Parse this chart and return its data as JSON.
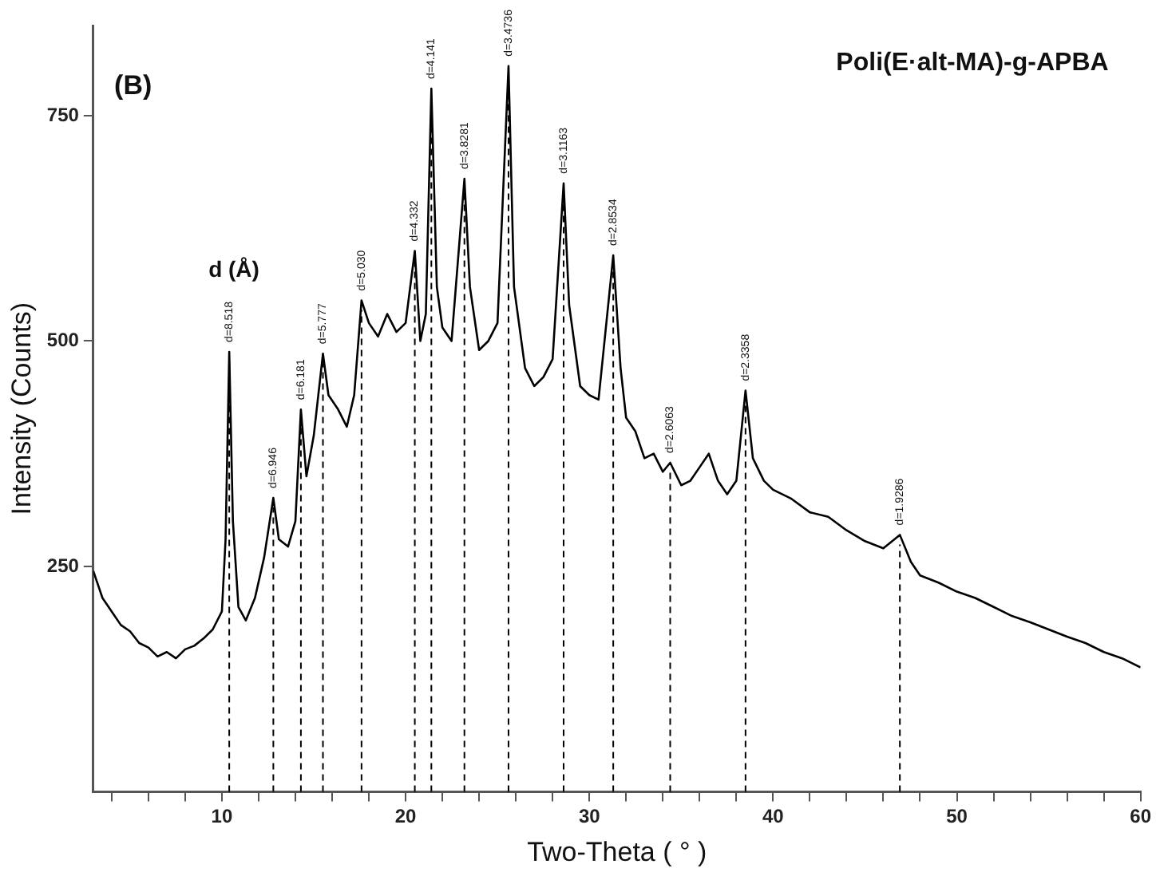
{
  "chart_data": {
    "type": "line",
    "title": "Poli(E·alt-MA)-g-APBA",
    "xlabel": "Two-Theta ( ° )",
    "ylabel": "Intensity (Counts)",
    "xlim": [
      3,
      60
    ],
    "ylim": [
      0,
      850
    ],
    "xticks": [
      {
        "value": 4,
        "label": null
      },
      {
        "value": 6,
        "label": null
      },
      {
        "value": 8,
        "label": null
      },
      10,
      {
        "value": 12,
        "label": null
      },
      {
        "value": 14,
        "label": null
      },
      {
        "value": 16,
        "label": null
      },
      {
        "value": 18,
        "label": null
      },
      20,
      {
        "value": 22,
        "label": null
      },
      {
        "value": 24,
        "label": null
      },
      {
        "value": 26,
        "label": null
      },
      {
        "value": 28,
        "label": null
      },
      30,
      {
        "value": 32,
        "label": null
      },
      {
        "value": 34,
        "label": null
      },
      {
        "value": 36,
        "label": null
      },
      {
        "value": 38,
        "label": null
      },
      40,
      {
        "value": 42,
        "label": null
      },
      {
        "value": 44,
        "label": null
      },
      {
        "value": 46,
        "label": null
      },
      {
        "value": 48,
        "label": null
      },
      50,
      {
        "value": 52,
        "label": null
      },
      {
        "value": 54,
        "label": null
      },
      {
        "value": 56,
        "label": null
      },
      {
        "value": 58,
        "label": null
      },
      60
    ],
    "yticks": [
      250,
      500,
      750
    ],
    "grid": false,
    "legend": false,
    "marker": "none",
    "line_style": "solid",
    "x": [
      3,
      3.5,
      4,
      4.5,
      5,
      5.5,
      6,
      6.5,
      7,
      7.5,
      8,
      8.5,
      9,
      9.5,
      10,
      10.2,
      10.4,
      10.6,
      10.9,
      11.3,
      11.8,
      12.3,
      12.8,
      13.1,
      13.6,
      14,
      14.3,
      14.6,
      15,
      15.5,
      15.8,
      16.3,
      16.8,
      17.2,
      17.6,
      18,
      18.5,
      19,
      19.5,
      20,
      20.5,
      20.8,
      21.1,
      21.4,
      21.7,
      22,
      22.5,
      23.2,
      23.5,
      24,
      24.5,
      25,
      25.6,
      25.9,
      26.5,
      27,
      27.5,
      28,
      28.6,
      28.9,
      29.5,
      30,
      30.5,
      31.3,
      31.7,
      32,
      32.5,
      33,
      33.5,
      34,
      34.4,
      35,
      35.5,
      36,
      36.5,
      37,
      37.5,
      38,
      38.5,
      38.9,
      39.5,
      40,
      41,
      42,
      43,
      44,
      45,
      46,
      46.9,
      47.5,
      48,
      49,
      50,
      51,
      52,
      53,
      54,
      55,
      56,
      57,
      58,
      59,
      60
    ],
    "series": [
      {
        "color": "#000000",
        "values": [
          245,
          215,
          200,
          185,
          178,
          165,
          160,
          150,
          155,
          148,
          158,
          162,
          170,
          180,
          200,
          280,
          488,
          300,
          205,
          190,
          215,
          260,
          326,
          280,
          272,
          300,
          424,
          350,
          395,
          486,
          440,
          425,
          405,
          440,
          545,
          520,
          505,
          530,
          510,
          520,
          600,
          500,
          530,
          780,
          560,
          515,
          500,
          680,
          560,
          490,
          500,
          520,
          805,
          560,
          470,
          450,
          460,
          480,
          675,
          540,
          450,
          440,
          435,
          595,
          470,
          415,
          400,
          370,
          375,
          355,
          365,
          340,
          345,
          360,
          375,
          345,
          330,
          345,
          445,
          370,
          345,
          335,
          325,
          310,
          305,
          290,
          278,
          270,
          285,
          255,
          240,
          232,
          222,
          215,
          205,
          195,
          188,
          180,
          172,
          165,
          155,
          148,
          138
        ]
      }
    ],
    "ref_lines": [
      {
        "axis": "x",
        "value": 10.4,
        "line_style": "dashed",
        "color": "#000000"
      },
      {
        "axis": "x",
        "value": 12.8,
        "line_style": "dashed",
        "color": "#000000"
      },
      {
        "axis": "x",
        "value": 14.3,
        "line_style": "dashed",
        "color": "#000000"
      },
      {
        "axis": "x",
        "value": 15.5,
        "line_style": "dashed",
        "color": "#000000"
      },
      {
        "axis": "x",
        "value": 17.6,
        "line_style": "dashed",
        "color": "#000000"
      },
      {
        "axis": "x",
        "value": 20.5,
        "line_style": "dashed",
        "color": "#000000"
      },
      {
        "axis": "x",
        "value": 21.4,
        "line_style": "dashed",
        "color": "#000000"
      },
      {
        "axis": "x",
        "value": 23.2,
        "line_style": "dashed",
        "color": "#000000"
      },
      {
        "axis": "x",
        "value": 25.6,
        "line_style": "dashed",
        "color": "#000000"
      },
      {
        "axis": "x",
        "value": 28.6,
        "line_style": "dashed",
        "color": "#000000"
      },
      {
        "axis": "x",
        "value": 31.3,
        "line_style": "dashed",
        "color": "#000000"
      },
      {
        "axis": "x",
        "value": 34.4,
        "line_style": "dashed",
        "color": "#000000"
      },
      {
        "axis": "x",
        "value": 38.5,
        "line_style": "dashed",
        "color": "#000000"
      },
      {
        "axis": "x",
        "value": 46.9,
        "line_style": "dashed",
        "color": "#000000"
      }
    ],
    "annotations": [
      "(B)",
      "d (Å)",
      {
        "text": "d=8.518",
        "x": 10.4,
        "y": 488
      },
      {
        "text": "d=6.946",
        "x": 12.8,
        "y": 326
      },
      {
        "text": "d=6.181",
        "x": 14.3,
        "y": 424
      },
      {
        "text": "d=5.777",
        "x": 15.5,
        "y": 486
      },
      {
        "text": "d=5.030",
        "x": 17.6,
        "y": 545
      },
      {
        "text": "d=4.332",
        "x": 20.5,
        "y": 600
      },
      {
        "text": "d=4.141",
        "x": 21.4,
        "y": 780
      },
      {
        "text": "d=3.8281",
        "x": 23.2,
        "y": 680
      },
      {
        "text": "d=3.4736",
        "x": 25.6,
        "y": 805
      },
      {
        "text": "d=3.1163",
        "x": 28.6,
        "y": 675
      },
      {
        "text": "d=2.8534",
        "x": 31.3,
        "y": 595
      },
      {
        "text": "d=2.6063",
        "x": 34.4,
        "y": 365
      },
      {
        "text": "d=2.3358",
        "x": 38.5,
        "y": 445
      },
      {
        "text": "d=1.9286",
        "x": 46.9,
        "y": 285
      }
    ]
  }
}
